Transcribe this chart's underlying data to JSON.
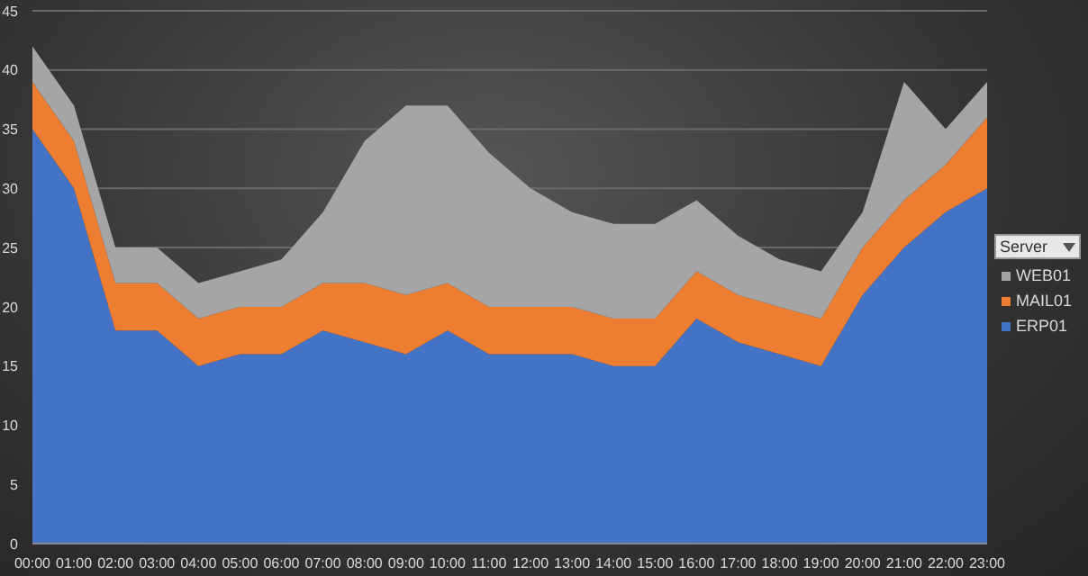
{
  "chart_data": {
    "type": "area",
    "stacked": true,
    "legend_title": "Server",
    "legend": "right",
    "grid": "y",
    "categories": [
      "00:00",
      "01:00",
      "02:00",
      "03:00",
      "04:00",
      "05:00",
      "06:00",
      "07:00",
      "08:00",
      "09:00",
      "10:00",
      "11:00",
      "12:00",
      "13:00",
      "14:00",
      "15:00",
      "16:00",
      "17:00",
      "18:00",
      "19:00",
      "20:00",
      "21:00",
      "22:00",
      "23:00"
    ],
    "series": [
      {
        "name": "ERP01",
        "color": "#4472c4",
        "values": [
          35,
          30,
          18,
          18,
          15,
          16,
          16,
          18,
          17,
          16,
          18,
          16,
          16,
          16,
          15,
          15,
          19,
          17,
          16,
          15,
          21,
          25,
          28,
          30
        ]
      },
      {
        "name": "MAIL01",
        "color": "#ed7d31",
        "values": [
          4,
          4,
          4,
          4,
          4,
          4,
          4,
          4,
          5,
          5,
          4,
          4,
          4,
          4,
          4,
          4,
          4,
          4,
          4,
          4,
          4,
          4,
          4,
          6
        ]
      },
      {
        "name": "WEB01",
        "color": "#a5a5a5",
        "values": [
          3,
          3,
          3,
          3,
          3,
          3,
          4,
          6,
          12,
          16,
          15,
          13,
          10,
          8,
          8,
          8,
          6,
          5,
          4,
          4,
          3,
          10,
          3,
          3
        ]
      }
    ],
    "ylim": [
      0,
      45
    ],
    "yticks": [
      0,
      5,
      10,
      15,
      20,
      25,
      30,
      35,
      40,
      45
    ]
  }
}
